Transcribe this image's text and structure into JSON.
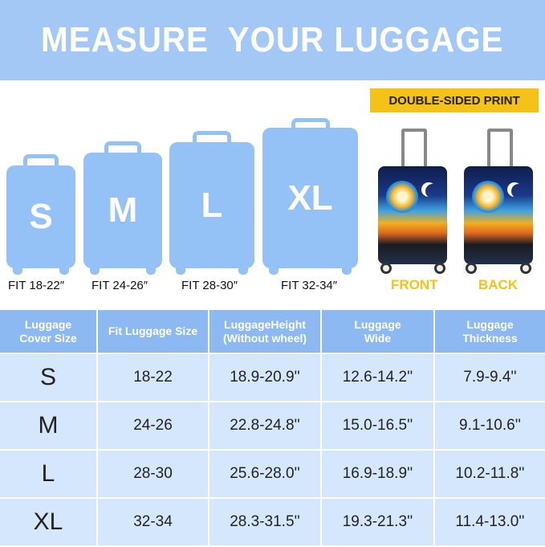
{
  "title": "MEASURE  YOUR LUGGAGE",
  "sizes": [
    {
      "letter": "S",
      "fit": "FIT 18-22″"
    },
    {
      "letter": "M",
      "fit": "FIT 24-26″"
    },
    {
      "letter": "L",
      "fit": "FIT 28-30″"
    },
    {
      "letter": "XL",
      "fit": "FIT 32-34″"
    }
  ],
  "print": {
    "badge": "DOUBLE-SIDED PRINT",
    "front": "FRONT",
    "back": "BACK"
  },
  "table": {
    "headers": [
      "Luggage\nCover Size",
      "Fit Luggage Size",
      "LuggageHeight\n(Without wheel)",
      "Luggage\nWide",
      "Luggage\nThickness"
    ],
    "rows": [
      [
        "S",
        "18-22",
        "18.9-20.9''",
        "12.6-14.2''",
        "7.9-9.4''"
      ],
      [
        "M",
        "24-26",
        "22.8-24.8''",
        "15.0-16.5''",
        "9.1-10.6''"
      ],
      [
        "L",
        "28-30",
        "25.6-28.0''",
        "16.9-18.9''",
        "10.2-11.8''"
      ],
      [
        "XL",
        "32-34",
        "28.3-31.5''",
        "19.3-21.3''",
        "11.4-13.0''"
      ]
    ]
  },
  "colors": {
    "banner": "#a3c8f6",
    "suitcase": "#94c2f6",
    "badge": "#f5c317",
    "table_header": "#8db9f2",
    "table_cell": "#d5e7fd"
  }
}
